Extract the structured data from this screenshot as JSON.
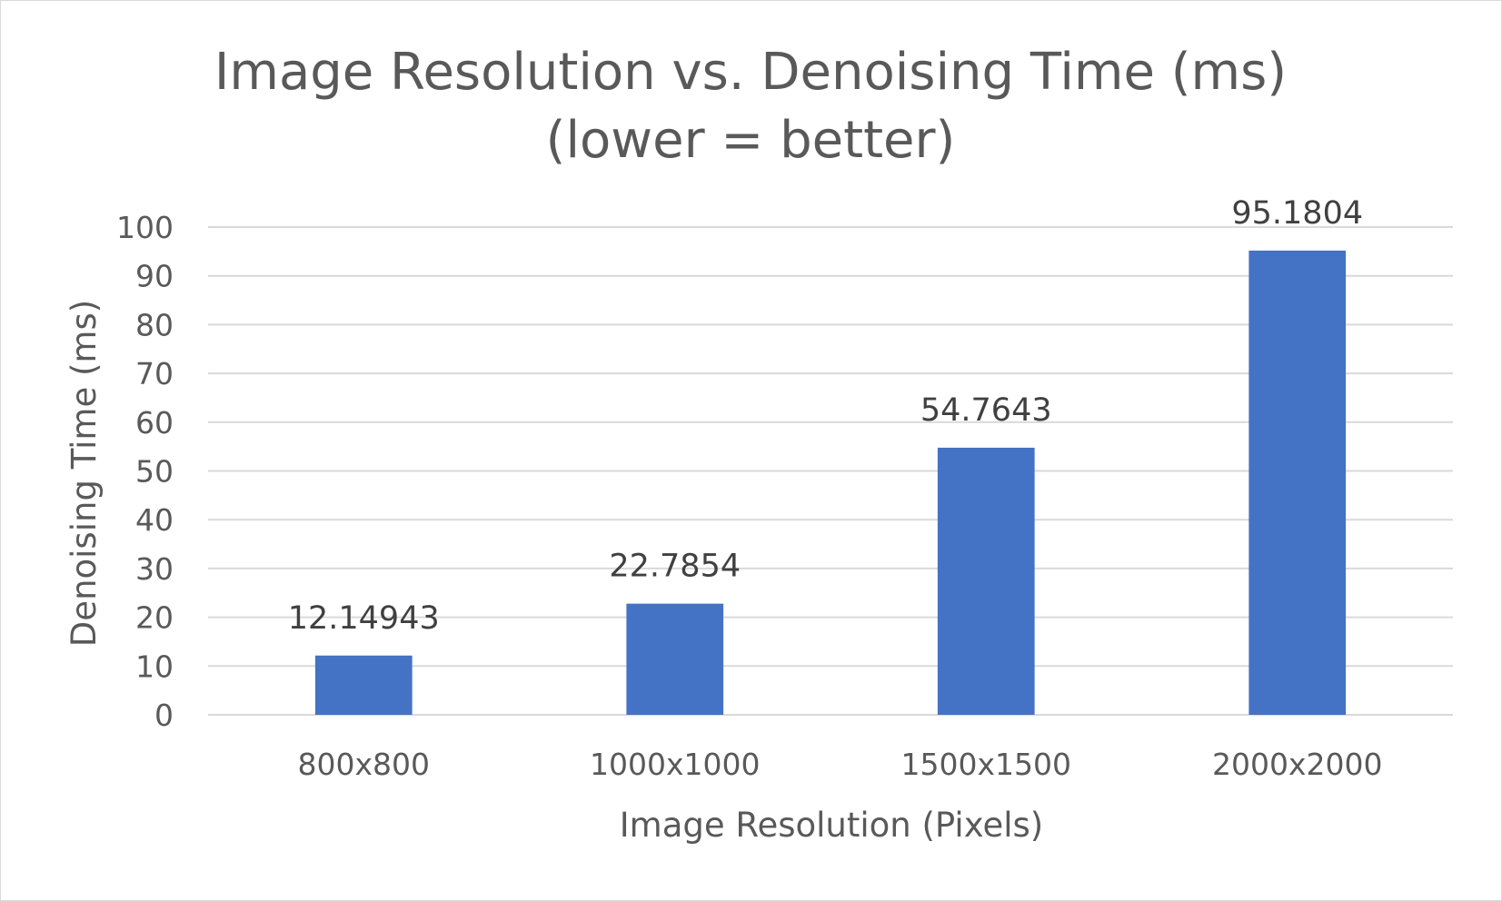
{
  "chart_data": {
    "type": "bar",
    "title": "Image Resolution vs. Denoising Time (ms)",
    "subtitle": "(lower = better)",
    "xlabel": "Image Resolution (Pixels)",
    "ylabel": "Denoising Time (ms)",
    "categories": [
      "800x800",
      "1000x1000",
      "1500x1500",
      "2000x2000"
    ],
    "values": [
      12.14943,
      22.7854,
      54.7643,
      95.1804
    ],
    "data_labels": [
      "12.14943",
      "22.7854",
      "54.7643",
      "95.1804"
    ],
    "ylim": [
      0,
      100
    ],
    "yticks": [
      0,
      10,
      20,
      30,
      40,
      50,
      60,
      70,
      80,
      90,
      100
    ],
    "grid": true,
    "legend": "none",
    "colors": {
      "bar": "#4472C4",
      "gridline": "#d9d9d9",
      "text": "#595959",
      "data_label": "#404040"
    }
  }
}
